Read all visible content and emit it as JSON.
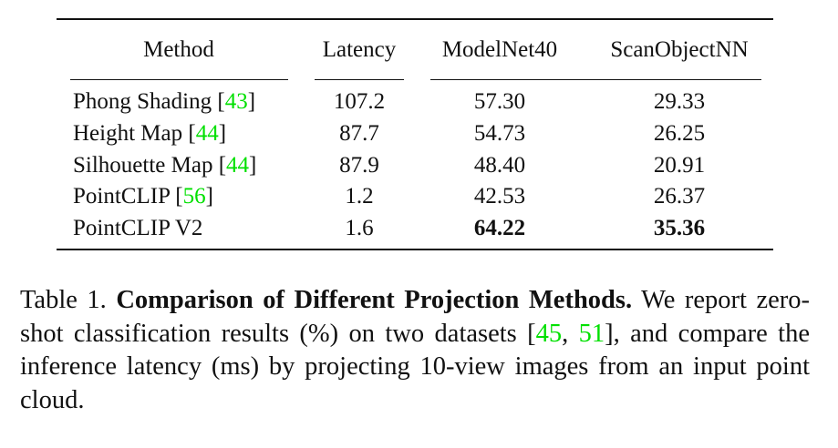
{
  "table": {
    "headers": [
      "Method",
      "Latency",
      "ModelNet40",
      "ScanObjectNN"
    ],
    "rows": [
      {
        "method": "Phong Shading",
        "cite": "43",
        "latency": "107.2",
        "modelnet40": "57.30",
        "scanobjectnn": "29.33",
        "bold": false
      },
      {
        "method": "Height Map",
        "cite": "44",
        "latency": "87.7",
        "modelnet40": "54.73",
        "scanobjectnn": "26.25",
        "bold": false
      },
      {
        "method": "Silhouette Map",
        "cite": "44",
        "latency": "87.9",
        "modelnet40": "48.40",
        "scanobjectnn": "20.91",
        "bold": false
      },
      {
        "method": "PointCLIP",
        "cite": "56",
        "latency": "1.2",
        "modelnet40": "42.53",
        "scanobjectnn": "26.37",
        "bold": false
      },
      {
        "method": "PointCLIP V2",
        "cite": "",
        "latency": "1.6",
        "modelnet40": "64.22",
        "scanobjectnn": "35.36",
        "bold": true
      }
    ]
  },
  "caption": {
    "label": "Table 1.",
    "title": "Comparison of Different Projection Methods.",
    "text_1": " We report zero-shot classification results (%) on two datasets [",
    "cite_1": "45",
    "sep": ", ",
    "cite_2": "51",
    "text_2": "], and compare the inference latency (ms) by projecting 10-view images from an input point cloud."
  },
  "colors": {
    "citation": "#00e000",
    "text": "#111111"
  }
}
